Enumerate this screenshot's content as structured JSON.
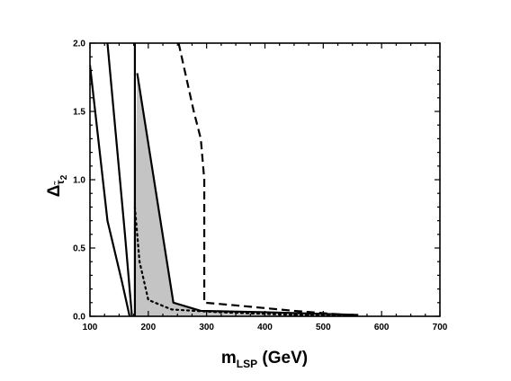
{
  "chart_data": {
    "type": "line",
    "xlabel": {
      "main": "m",
      "sub": "LSP",
      "unit": " (GeV)"
    },
    "ylabel": {
      "main": "Δ",
      "sub": "τ̃",
      "subsub": "2"
    },
    "xlim": [
      100,
      700
    ],
    "ylim": [
      0,
      2.0
    ],
    "x_ticks": [
      100,
      200,
      300,
      400,
      500,
      600,
      700
    ],
    "y_ticks": [
      0.0,
      0.5,
      1.0,
      1.5,
      2.0
    ],
    "x_tick_labels": [
      "100",
      "200",
      "300",
      "400",
      "500",
      "600",
      "700"
    ],
    "y_tick_labels": [
      "0.0",
      "0.5",
      "1.0",
      "1.5",
      "2.0"
    ],
    "grid": false,
    "series": [
      {
        "style": "solid",
        "points": [
          [
            100,
            1.84
          ],
          [
            130,
            0.7
          ],
          [
            155,
            0.25
          ],
          [
            168,
            0
          ]
        ]
      },
      {
        "style": "solid",
        "points": [
          [
            130,
            2.0
          ],
          [
            145,
            1.3
          ],
          [
            160,
            0.6
          ],
          [
            172,
            0
          ]
        ]
      },
      {
        "style": "solid",
        "points": [
          [
            177,
            0
          ],
          [
            177,
            2.0
          ]
        ]
      },
      {
        "style": "solid",
        "points": [
          [
            181,
            1.78
          ],
          [
            243,
            0.1
          ],
          [
            290,
            0.04
          ],
          [
            400,
            0.03
          ],
          [
            560,
            0.01
          ]
        ]
      },
      {
        "style": "dotted",
        "points": [
          [
            177,
            0.8
          ],
          [
            185,
            0.4
          ],
          [
            200,
            0.12
          ],
          [
            240,
            0.05
          ],
          [
            320,
            0.03
          ],
          [
            450,
            0.01
          ],
          [
            560,
            0.0
          ]
        ]
      },
      {
        "style": "dashed",
        "points": [
          [
            252,
            2.0
          ],
          [
            265,
            1.75
          ],
          [
            278,
            1.5
          ],
          [
            290,
            1.3
          ],
          [
            296,
            1.0
          ],
          [
            296,
            0.1
          ],
          [
            350,
            0.08
          ],
          [
            450,
            0.04
          ],
          [
            540,
            0.01
          ],
          [
            560,
            0.0
          ]
        ]
      }
    ],
    "shaded_region": [
      [
        177,
        0
      ],
      [
        177,
        0.72
      ],
      [
        181,
        1.78
      ],
      [
        243,
        0.1
      ],
      [
        290,
        0.04
      ],
      [
        400,
        0.03
      ],
      [
        560,
        0.01
      ],
      [
        560,
        0
      ],
      [
        177,
        0
      ]
    ]
  }
}
